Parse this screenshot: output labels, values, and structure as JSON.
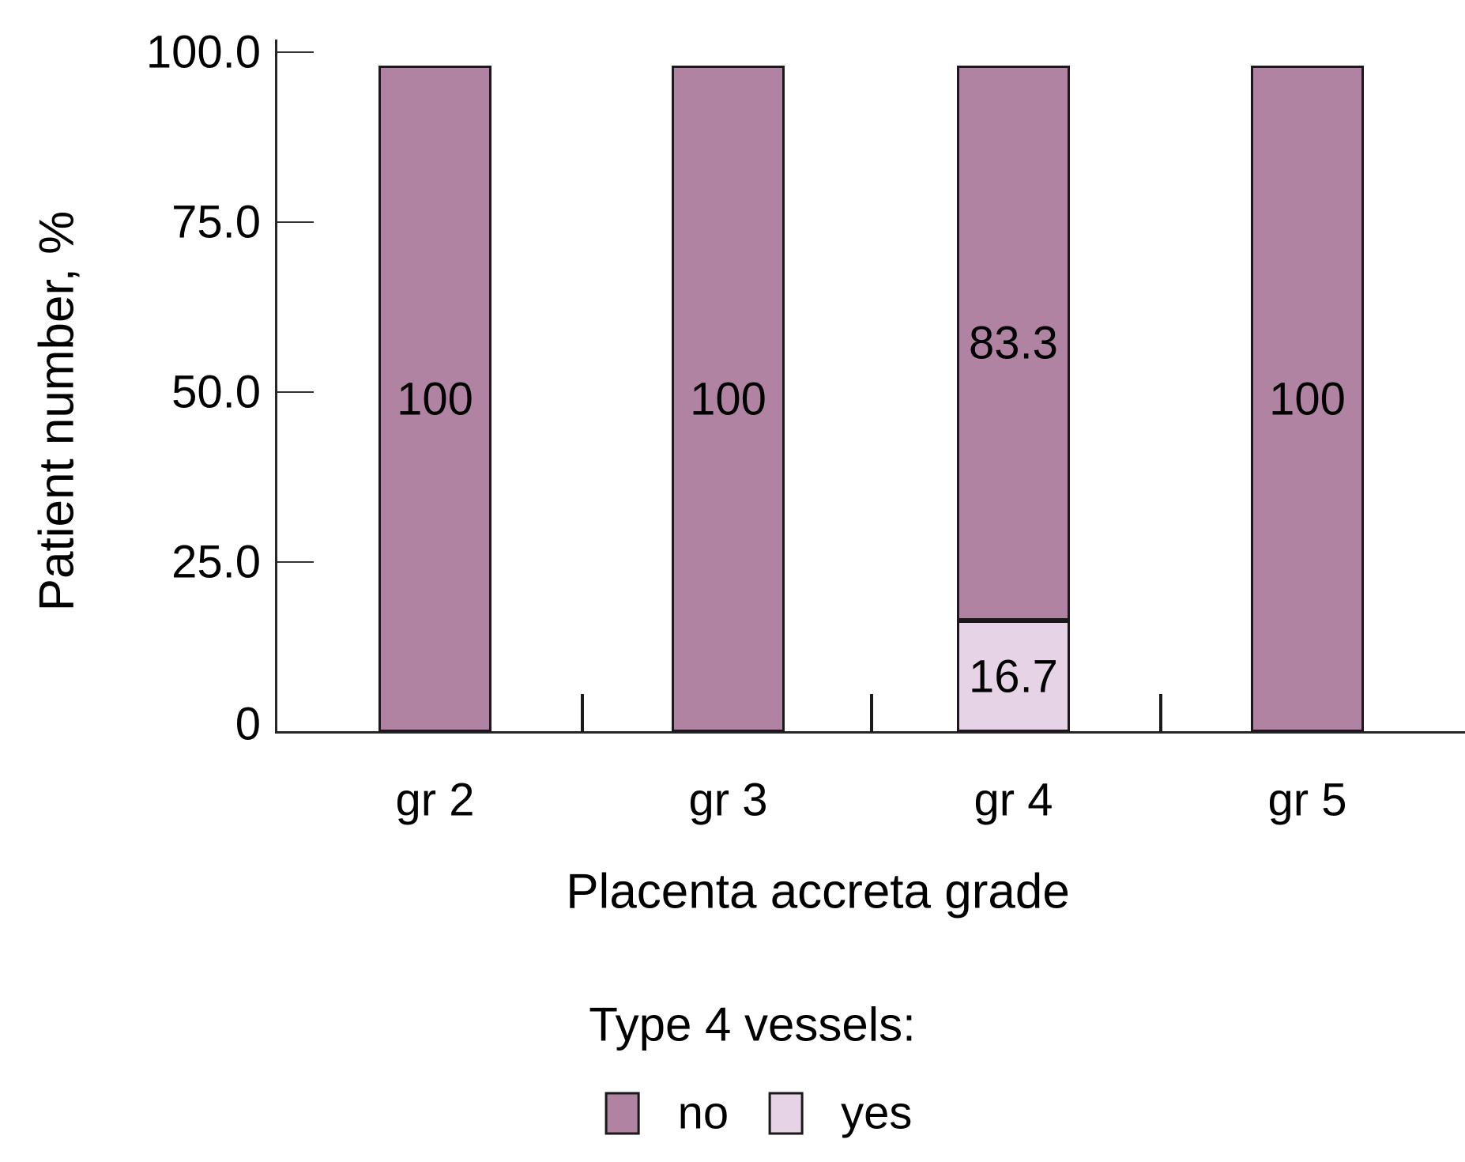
{
  "y_axis": {
    "title": "Patient number, %",
    "tick_labels": [
      "100.0",
      "75.0",
      "50.0",
      "25.0",
      "0"
    ],
    "tick_values": [
      100,
      75,
      50,
      25,
      0
    ]
  },
  "x_axis": {
    "title": "Placenta accreta grade",
    "categories": [
      "gr 2",
      "gr 3",
      "gr 4",
      "gr 5"
    ]
  },
  "legend": {
    "title": "Type 4 vessels:",
    "items": [
      {
        "label": "no",
        "color": "#b183a2"
      },
      {
        "label": "yes",
        "color": "#e6d3e5"
      }
    ]
  },
  "colors": {
    "no": "#b183a2",
    "yes": "#e6d3e5",
    "axis": "#262626",
    "bar_border": "#1a1a1a",
    "text": "#000000",
    "background": "#ffffff"
  },
  "chart_data": {
    "type": "bar",
    "stacked": true,
    "title": "",
    "xlabel": "Placenta accreta grade",
    "ylabel": "Patient number, %",
    "categories": [
      "gr 2",
      "gr 3",
      "gr 4",
      "gr 5"
    ],
    "series": [
      {
        "name": "no",
        "color": "#b183a2",
        "values": [
          100,
          100,
          83.3,
          100
        ]
      },
      {
        "name": "yes",
        "color": "#e6d3e5",
        "values": [
          0,
          0,
          16.7,
          0
        ]
      }
    ],
    "segment_labels": {
      "gr 2": {
        "no": "100"
      },
      "gr 3": {
        "no": "100"
      },
      "gr 4": {
        "no": "83.3",
        "yes": "16.7"
      },
      "gr 5": {
        "no": "100"
      }
    },
    "ylim": [
      0,
      100
    ],
    "grid": false,
    "legend_position": "bottom"
  }
}
